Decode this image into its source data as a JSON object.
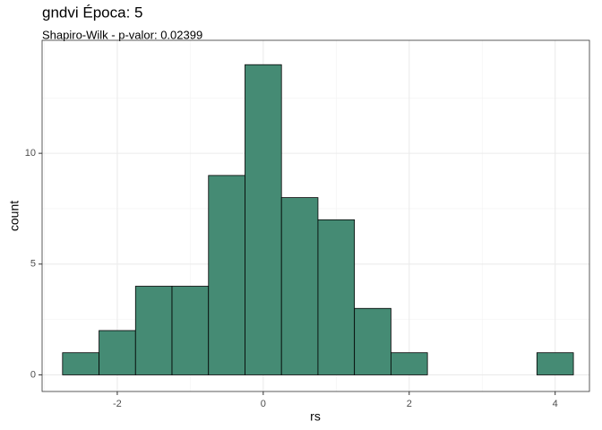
{
  "chart_data": {
    "type": "histogram",
    "title": "gndvi  Época:  5",
    "subtitle": "Shapiro-Wilk - p-valor:  0.02399",
    "x_label": "rs",
    "y_label": "count",
    "bins": [
      -2.75,
      -2.25,
      -1.75,
      -1.25,
      -0.75,
      -0.25,
      0.25,
      0.75,
      1.25,
      1.75,
      2.25,
      2.75,
      3.25,
      3.75,
      4.25
    ],
    "counts": [
      1,
      2,
      4,
      4,
      9,
      14,
      8,
      7,
      3,
      1,
      0,
      0,
      0,
      1
    ],
    "color": "#458b74",
    "xlim": [
      -3.03,
      4.47
    ],
    "xticks": [
      -2,
      0,
      2,
      4
    ],
    "minor_xticks": [
      -3,
      -1,
      1,
      3
    ],
    "ylim": [
      -0.75,
      15.1
    ],
    "yticks": [
      0,
      5,
      10
    ],
    "minor_yticks": [
      2.5,
      7.5,
      12.5
    ],
    "grid": true
  }
}
